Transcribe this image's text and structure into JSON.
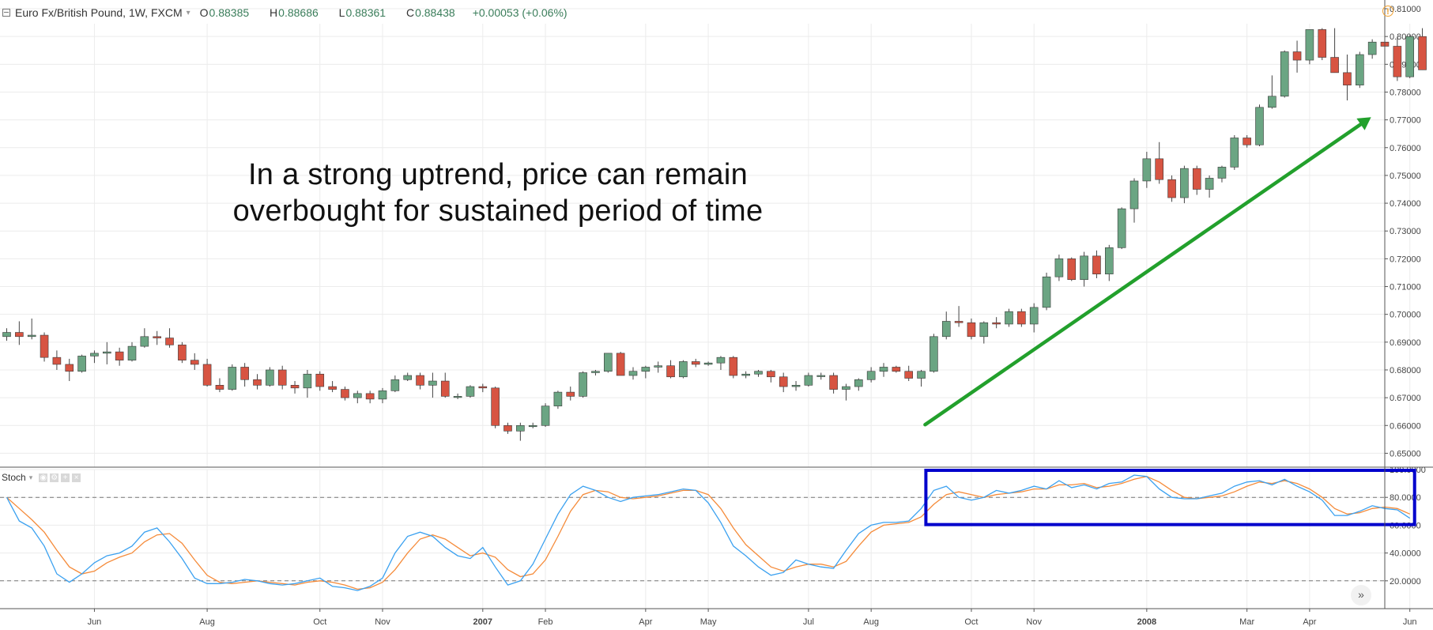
{
  "header": {
    "symbol": "Euro Fx/British Pound, 1W, FXCM",
    "caret": "▾",
    "ohlc": [
      {
        "label": "O",
        "value": "0.88385"
      },
      {
        "label": "H",
        "value": "0.88686"
      },
      {
        "label": "L",
        "value": "0.88361"
      },
      {
        "label": "C",
        "value": "0.88438"
      }
    ],
    "change": "+0.00053 (+0.06%)"
  },
  "annotation": {
    "line1": "In a strong uptrend, price can remain",
    "line2": "overbought for sustained period of time"
  },
  "stoch_label": "Stoch",
  "colors": {
    "up": "#6ba583",
    "down": "#d75442",
    "k_line": "#3ba1f0",
    "d_line": "#f58b3a",
    "arrow": "#22a02c",
    "highlight": "#0000cc",
    "grid": "#ececec"
  },
  "chart_data": [
    {
      "type": "candlestick",
      "series_name": "Euro Fx/British Pound, 1W, FXCM",
      "ylim": [
        0.645,
        0.812
      ],
      "y_ticks": [
        "0.65000",
        "0.66000",
        "0.67000",
        "0.68000",
        "0.69000",
        "0.70000",
        "0.71000",
        "0.72000",
        "0.73000",
        "0.74000",
        "0.75000",
        "0.76000",
        "0.77000",
        "0.78000",
        "0.79000",
        "0.80000",
        "0.81000"
      ],
      "x_ticks": [
        {
          "label": "Jun",
          "bar": 7,
          "bold": false
        },
        {
          "label": "Aug",
          "bar": 16,
          "bold": false
        },
        {
          "label": "Oct",
          "bar": 25,
          "bold": false
        },
        {
          "label": "Nov",
          "bar": 30,
          "bold": false
        },
        {
          "label": "2007",
          "bar": 38,
          "bold": true
        },
        {
          "label": "Feb",
          "bar": 43,
          "bold": false
        },
        {
          "label": "Apr",
          "bar": 51,
          "bold": false
        },
        {
          "label": "May",
          "bar": 56,
          "bold": false
        },
        {
          "label": "Jul",
          "bar": 64,
          "bold": false
        },
        {
          "label": "Aug",
          "bar": 69,
          "bold": false
        },
        {
          "label": "Oct",
          "bar": 77,
          "bold": false
        },
        {
          "label": "Nov",
          "bar": 82,
          "bold": false
        },
        {
          "label": "2008",
          "bar": 91,
          "bold": true
        },
        {
          "label": "Mar",
          "bar": 99,
          "bold": false
        },
        {
          "label": "Apr",
          "bar": 104,
          "bold": false
        },
        {
          "label": "Jun",
          "bar": 112,
          "bold": false
        }
      ],
      "ohlc": [
        [
          0.692,
          0.695,
          0.6905,
          0.6935
        ],
        [
          0.6935,
          0.6975,
          0.689,
          0.692
        ],
        [
          0.692,
          0.6985,
          0.691,
          0.6925
        ],
        [
          0.6925,
          0.6935,
          0.683,
          0.6845
        ],
        [
          0.6845,
          0.687,
          0.68,
          0.682
        ],
        [
          0.682,
          0.684,
          0.676,
          0.6795
        ],
        [
          0.6795,
          0.6855,
          0.679,
          0.685
        ],
        [
          0.685,
          0.687,
          0.6825,
          0.686
        ],
        [
          0.686,
          0.69,
          0.682,
          0.6865
        ],
        [
          0.6865,
          0.688,
          0.6815,
          0.6835
        ],
        [
          0.6835,
          0.69,
          0.683,
          0.6885
        ],
        [
          0.6885,
          0.695,
          0.688,
          0.692
        ],
        [
          0.692,
          0.694,
          0.689,
          0.6915
        ],
        [
          0.6915,
          0.695,
          0.688,
          0.689
        ],
        [
          0.689,
          0.69,
          0.6825,
          0.6835
        ],
        [
          0.6835,
          0.686,
          0.68,
          0.682
        ],
        [
          0.682,
          0.684,
          0.674,
          0.6745
        ],
        [
          0.6745,
          0.677,
          0.672,
          0.673
        ],
        [
          0.673,
          0.682,
          0.6725,
          0.681
        ],
        [
          0.681,
          0.6825,
          0.674,
          0.6765
        ],
        [
          0.6765,
          0.6785,
          0.673,
          0.6745
        ],
        [
          0.6745,
          0.681,
          0.674,
          0.68
        ],
        [
          0.68,
          0.6815,
          0.673,
          0.6745
        ],
        [
          0.6745,
          0.676,
          0.6715,
          0.6735
        ],
        [
          0.6735,
          0.68,
          0.67,
          0.6785
        ],
        [
          0.6785,
          0.6795,
          0.6725,
          0.674
        ],
        [
          0.674,
          0.676,
          0.672,
          0.673
        ],
        [
          0.673,
          0.674,
          0.669,
          0.67
        ],
        [
          0.67,
          0.6725,
          0.668,
          0.6715
        ],
        [
          0.6715,
          0.6725,
          0.668,
          0.6695
        ],
        [
          0.6695,
          0.6735,
          0.668,
          0.6725
        ],
        [
          0.6725,
          0.678,
          0.672,
          0.6765
        ],
        [
          0.6765,
          0.679,
          0.676,
          0.678
        ],
        [
          0.678,
          0.679,
          0.673,
          0.6745
        ],
        [
          0.6745,
          0.679,
          0.67,
          0.676
        ],
        [
          0.676,
          0.679,
          0.67,
          0.6705
        ],
        [
          0.6705,
          0.6715,
          0.6695,
          0.6705
        ],
        [
          0.6705,
          0.6745,
          0.67,
          0.674
        ],
        [
          0.674,
          0.675,
          0.672,
          0.6735
        ],
        [
          0.6735,
          0.674,
          0.659,
          0.66
        ],
        [
          0.66,
          0.661,
          0.657,
          0.658
        ],
        [
          0.658,
          0.661,
          0.6545,
          0.66
        ],
        [
          0.66,
          0.661,
          0.659,
          0.66
        ],
        [
          0.66,
          0.668,
          0.6595,
          0.667
        ],
        [
          0.667,
          0.6725,
          0.666,
          0.672
        ],
        [
          0.672,
          0.674,
          0.669,
          0.6705
        ],
        [
          0.6705,
          0.6795,
          0.67,
          0.679
        ],
        [
          0.679,
          0.68,
          0.678,
          0.6795
        ],
        [
          0.6795,
          0.686,
          0.679,
          0.686
        ],
        [
          0.686,
          0.6865,
          0.678,
          0.678
        ],
        [
          0.678,
          0.681,
          0.6765,
          0.6795
        ],
        [
          0.6795,
          0.6815,
          0.677,
          0.681
        ],
        [
          0.681,
          0.683,
          0.679,
          0.6815
        ],
        [
          0.6815,
          0.6835,
          0.677,
          0.6775
        ],
        [
          0.6775,
          0.6835,
          0.677,
          0.683
        ],
        [
          0.683,
          0.684,
          0.681,
          0.682
        ],
        [
          0.682,
          0.683,
          0.6815,
          0.6825
        ],
        [
          0.6825,
          0.685,
          0.68,
          0.6845
        ],
        [
          0.6845,
          0.685,
          0.677,
          0.678
        ],
        [
          0.678,
          0.6795,
          0.677,
          0.6785
        ],
        [
          0.6785,
          0.68,
          0.6775,
          0.6795
        ],
        [
          0.6795,
          0.68,
          0.6755,
          0.6775
        ],
        [
          0.6775,
          0.679,
          0.672,
          0.674
        ],
        [
          0.674,
          0.676,
          0.6725,
          0.6745
        ],
        [
          0.6745,
          0.679,
          0.674,
          0.678
        ],
        [
          0.678,
          0.679,
          0.6765,
          0.678
        ],
        [
          0.678,
          0.679,
          0.6715,
          0.673
        ],
        [
          0.673,
          0.675,
          0.669,
          0.674
        ],
        [
          0.674,
          0.677,
          0.6725,
          0.6765
        ],
        [
          0.6765,
          0.681,
          0.6755,
          0.6795
        ],
        [
          0.6795,
          0.6825,
          0.6775,
          0.681
        ],
        [
          0.681,
          0.6815,
          0.679,
          0.6795
        ],
        [
          0.6795,
          0.6815,
          0.676,
          0.677
        ],
        [
          0.677,
          0.68,
          0.674,
          0.6795
        ],
        [
          0.6795,
          0.693,
          0.679,
          0.692
        ],
        [
          0.692,
          0.701,
          0.691,
          0.6975
        ],
        [
          0.6975,
          0.703,
          0.6955,
          0.697
        ],
        [
          0.697,
          0.6985,
          0.691,
          0.692
        ],
        [
          0.692,
          0.6975,
          0.6895,
          0.697
        ],
        [
          0.697,
          0.699,
          0.695,
          0.6965
        ],
        [
          0.6965,
          0.702,
          0.6955,
          0.701
        ],
        [
          0.701,
          0.702,
          0.6955,
          0.6965
        ],
        [
          0.6965,
          0.704,
          0.6935,
          0.7025
        ],
        [
          0.7025,
          0.715,
          0.7015,
          0.7135
        ],
        [
          0.7135,
          0.7215,
          0.712,
          0.72
        ],
        [
          0.72,
          0.7205,
          0.712,
          0.7125
        ],
        [
          0.7125,
          0.7225,
          0.71,
          0.721
        ],
        [
          0.721,
          0.723,
          0.713,
          0.7145
        ],
        [
          0.7145,
          0.725,
          0.712,
          0.724
        ],
        [
          0.724,
          0.7385,
          0.7235,
          0.738
        ],
        [
          0.738,
          0.749,
          0.733,
          0.748
        ],
        [
          0.748,
          0.7585,
          0.7455,
          0.756
        ],
        [
          0.756,
          0.762,
          0.747,
          0.7485
        ],
        [
          0.7485,
          0.75,
          0.7405,
          0.742
        ],
        [
          0.742,
          0.7535,
          0.74,
          0.7525
        ],
        [
          0.7525,
          0.7535,
          0.743,
          0.745
        ],
        [
          0.745,
          0.75,
          0.742,
          0.749
        ],
        [
          0.749,
          0.7535,
          0.7475,
          0.753
        ],
        [
          0.753,
          0.7645,
          0.752,
          0.7635
        ],
        [
          0.7635,
          0.7645,
          0.76,
          0.761
        ],
        [
          0.761,
          0.7755,
          0.7605,
          0.7745
        ],
        [
          0.7745,
          0.786,
          0.774,
          0.7785
        ],
        [
          0.7785,
          0.795,
          0.778,
          0.7945
        ],
        [
          0.7945,
          0.7985,
          0.787,
          0.7915
        ],
        [
          0.7915,
          0.8025,
          0.79,
          0.8025
        ],
        [
          0.8025,
          0.803,
          0.7915,
          0.7925
        ],
        [
          0.7925,
          0.803,
          0.787,
          0.787
        ],
        [
          0.787,
          0.7935,
          0.777,
          0.7825
        ],
        [
          0.7825,
          0.7945,
          0.7815,
          0.7935
        ],
        [
          0.7935,
          0.799,
          0.792,
          0.798
        ],
        [
          0.798,
          0.8035,
          0.795,
          0.7965
        ],
        [
          0.7965,
          0.8,
          0.784,
          0.7855
        ],
        [
          0.7855,
          0.8005,
          0.785,
          0.8
        ],
        [
          0.8,
          0.803,
          0.788,
          0.788
        ]
      ]
    },
    {
      "type": "line",
      "title": "Stoch",
      "ylim": [
        0,
        100
      ],
      "y_ticks": [
        "20.0000",
        "40.0000",
        "60.0000",
        "80.0000",
        "100.0000"
      ],
      "levels": [
        20,
        80
      ],
      "series": [
        {
          "values": [
            80,
            63,
            58,
            45,
            25,
            19,
            25,
            33,
            38,
            40,
            45,
            55,
            58,
            48,
            36,
            22,
            18,
            18,
            19,
            21,
            20,
            18,
            17,
            18,
            20,
            22,
            16,
            15,
            13,
            16,
            22,
            40,
            52,
            55,
            52,
            44,
            38,
            36,
            44,
            30,
            17,
            20,
            32,
            50,
            68,
            82,
            88,
            85,
            80,
            77,
            80,
            81,
            82,
            84,
            86,
            85,
            76,
            62,
            45,
            38,
            30,
            24,
            26,
            35,
            32,
            30,
            29,
            42,
            54,
            60,
            62,
            62,
            63,
            72,
            85,
            88,
            80,
            78,
            80,
            85,
            83,
            85,
            88,
            86,
            92,
            87,
            89,
            86,
            90,
            91,
            96,
            95,
            86,
            80,
            79,
            79,
            81,
            83,
            88,
            91,
            92,
            89,
            93,
            88,
            84,
            78,
            67,
            67,
            70,
            74,
            72,
            71,
            65
          ]
        },
        {
          "values": [
            80,
            72,
            64,
            55,
            42,
            30,
            25,
            27,
            33,
            37,
            40,
            48,
            53,
            54,
            47,
            35,
            24,
            19,
            18,
            19,
            20,
            19,
            18,
            17,
            19,
            20,
            19,
            17,
            14,
            15,
            19,
            28,
            40,
            50,
            53,
            50,
            44,
            38,
            40,
            37,
            28,
            23,
            25,
            35,
            52,
            70,
            82,
            85,
            84,
            80,
            79,
            80,
            81,
            83,
            85,
            85,
            82,
            72,
            58,
            46,
            38,
            30,
            27,
            30,
            32,
            32,
            30,
            34,
            45,
            55,
            60,
            61,
            62,
            66,
            75,
            82,
            84,
            82,
            80,
            82,
            83,
            84,
            86,
            86,
            89,
            89,
            90,
            87,
            88,
            90,
            93,
            95,
            91,
            85,
            80,
            79,
            80,
            81,
            84,
            88,
            91,
            90,
            92,
            90,
            86,
            80,
            72,
            68,
            69,
            72,
            73,
            72,
            68
          ]
        }
      ]
    }
  ]
}
